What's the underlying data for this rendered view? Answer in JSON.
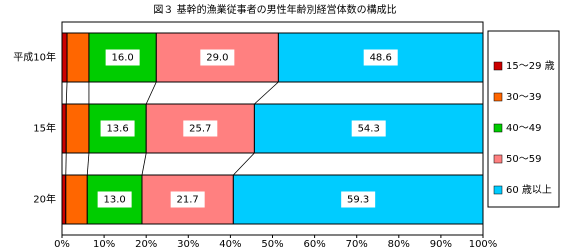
{
  "chart_data": {
    "type": "stacked-bar-horizontal",
    "title": "図３ 基幹的漁業従事者の男性年齢別経営体数の構成比",
    "categories": [
      "平成10年",
      "15年",
      "20年"
    ],
    "series": [
      {
        "name": "15～29 歳",
        "color": "#cc0000",
        "values": [
          1.2,
          1.0,
          0.9
        ]
      },
      {
        "name": "30～39",
        "color": "#ff6600",
        "values": [
          5.2,
          5.4,
          5.1
        ]
      },
      {
        "name": "40～49",
        "color": "#00cc00",
        "values": [
          16.0,
          13.6,
          13.0
        ],
        "value_labels": [
          "16.0",
          "13.6",
          "13.0"
        ]
      },
      {
        "name": "50～59",
        "color": "#ff8080",
        "values": [
          29.0,
          25.7,
          21.7
        ],
        "value_labels": [
          "29.0",
          "25.7",
          "21.7"
        ]
      },
      {
        "name": "60 歳以上",
        "color": "#00ccff",
        "values": [
          48.6,
          54.3,
          59.3
        ],
        "value_labels": [
          "48.6",
          "54.3",
          "59.3"
        ]
      }
    ],
    "xlim": [
      0,
      100
    ],
    "xticks": [
      {
        "value": 0,
        "label": "0%"
      },
      {
        "value": 10,
        "label": "10%"
      },
      {
        "value": 20,
        "label": "20%"
      },
      {
        "value": 30,
        "label": "30%"
      },
      {
        "value": 40,
        "label": "40%"
      },
      {
        "value": 50,
        "label": "50%"
      },
      {
        "value": 60,
        "label": "60%"
      },
      {
        "value": 70,
        "label": "70%"
      },
      {
        "value": 80,
        "label": "80%"
      },
      {
        "value": 90,
        "label": "90%"
      },
      {
        "value": 100,
        "label": "100%"
      }
    ],
    "legend": "right"
  }
}
